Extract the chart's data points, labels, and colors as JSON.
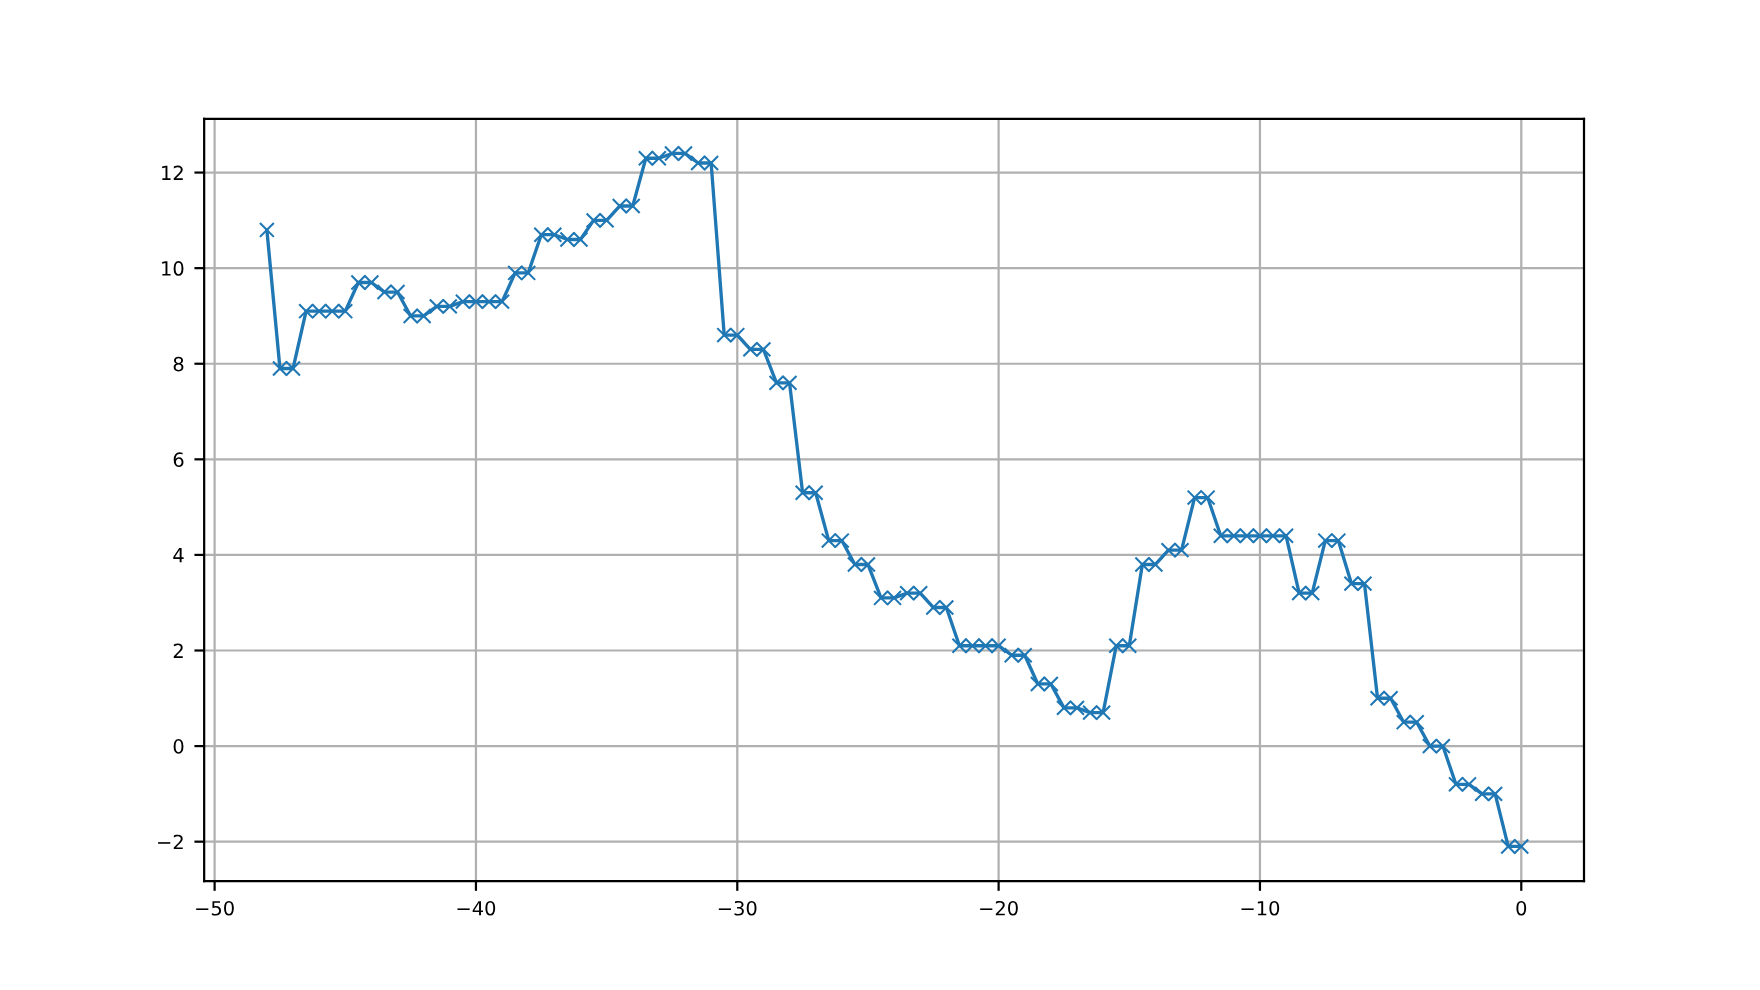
{
  "chart_data": {
    "type": "line",
    "marker": "cross",
    "grid": true,
    "xlim": [
      -50.4,
      2.4
    ],
    "ylim": [
      -2.825,
      13.125
    ],
    "xticks": [
      {
        "value": -50,
        "label": "−50"
      },
      {
        "value": -40,
        "label": "−40"
      },
      {
        "value": -30,
        "label": "−30"
      },
      {
        "value": -20,
        "label": "−20"
      },
      {
        "value": -10,
        "label": "−10"
      },
      0
    ],
    "yticks": [
      {
        "value": -2,
        "label": "−2"
      },
      0,
      2,
      4,
      6,
      8,
      10,
      12
    ],
    "x": [
      -48,
      -47.5,
      -47,
      -46.5,
      -46,
      -45.5,
      -45,
      -44.5,
      -44,
      -43.5,
      -43,
      -42.5,
      -42,
      -41.5,
      -41,
      -40.5,
      -40,
      -39.5,
      -39,
      -38.5,
      -38,
      -37.5,
      -37,
      -36.5,
      -36,
      -35.5,
      -35,
      -34.5,
      -34,
      -33.5,
      -33,
      -32.5,
      -32,
      -31.5,
      -31,
      -30.5,
      -30,
      -29.5,
      -29,
      -28.5,
      -28,
      -27.5,
      -27,
      -26.5,
      -26,
      -25.5,
      -25,
      -24.5,
      -24,
      -23.5,
      -23,
      -22.5,
      -22,
      -21.5,
      -21,
      -20.5,
      -20,
      -19.5,
      -19,
      -18.5,
      -18,
      -17.5,
      -17,
      -16.5,
      -16,
      -15.5,
      -15,
      -14.5,
      -14,
      -13.5,
      -13,
      -12.5,
      -12,
      -11.5,
      -11,
      -10.5,
      -10,
      -9.5,
      -9,
      -8.5,
      -8,
      -7.5,
      -7,
      -6.5,
      -6,
      -5.5,
      -5,
      -4.5,
      -4,
      -3.5,
      -3,
      -2.5,
      -2,
      -1.5,
      -1,
      -0.5,
      0
    ],
    "series": [
      {
        "color": "#1f77b4",
        "values": [
          10.8,
          7.9,
          7.9,
          9.1,
          9.1,
          9.1,
          9.1,
          9.7,
          9.7,
          9.5,
          9.5,
          9.0,
          9.0,
          9.2,
          9.2,
          9.3,
          9.3,
          9.3,
          9.3,
          9.9,
          9.9,
          10.7,
          10.7,
          10.6,
          10.6,
          11.0,
          11.0,
          11.3,
          11.3,
          12.3,
          12.3,
          12.4,
          12.4,
          12.2,
          12.2,
          8.6,
          8.6,
          8.3,
          8.3,
          7.6,
          7.6,
          5.3,
          5.3,
          4.3,
          4.3,
          3.8,
          3.8,
          3.1,
          3.1,
          3.2,
          3.2,
          2.9,
          2.9,
          2.1,
          2.1,
          2.1,
          2.1,
          1.9,
          1.9,
          1.3,
          1.3,
          0.8,
          0.8,
          0.7,
          0.7,
          2.1,
          2.1,
          3.8,
          3.8,
          4.1,
          4.1,
          5.2,
          5.2,
          4.4,
          4.4,
          4.4,
          4.4,
          4.4,
          4.4,
          3.2,
          3.2,
          4.3,
          4.3,
          3.4,
          3.4,
          1.0,
          1.0,
          0.5,
          0.5,
          0.0,
          0.0,
          -0.8,
          -0.8,
          -1.0,
          -1.0,
          -2.1,
          -2.1
        ]
      }
    ]
  }
}
